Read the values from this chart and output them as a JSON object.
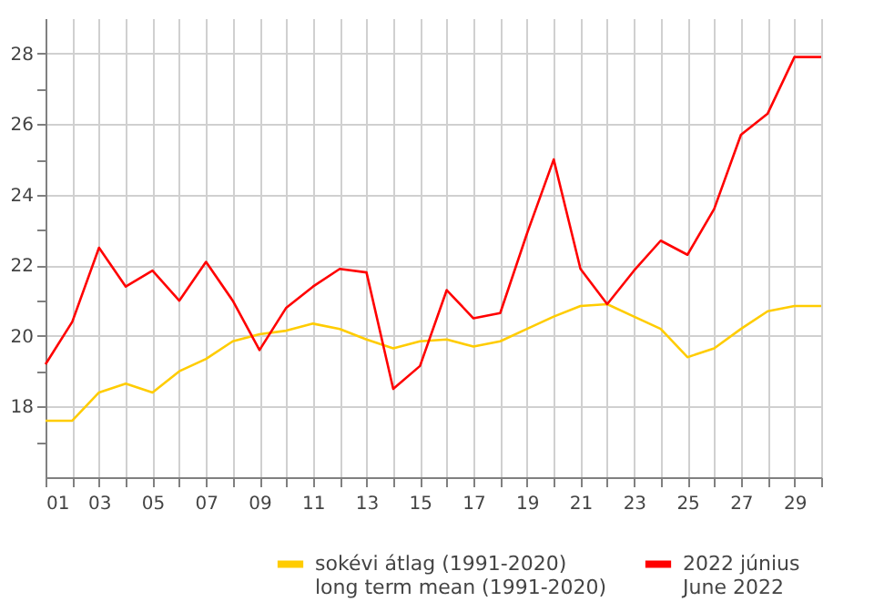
{
  "chart_data": {
    "type": "line",
    "x": [
      1,
      2,
      3,
      4,
      5,
      6,
      7,
      8,
      9,
      10,
      11,
      12,
      13,
      14,
      15,
      16,
      17,
      18,
      19,
      20,
      21,
      22,
      23,
      24,
      25,
      26,
      27,
      28,
      29,
      30
    ],
    "series": [
      {
        "name": "sokévi átlag (1991-2020)\nlong term mean (1991-2020)",
        "color": "#ffcc00",
        "values": [
          17.6,
          17.6,
          18.4,
          18.65,
          18.4,
          19.0,
          19.35,
          19.85,
          20.05,
          20.15,
          20.35,
          20.2,
          19.9,
          19.65,
          19.85,
          19.9,
          19.7,
          19.85,
          20.2,
          20.55,
          20.85,
          20.9,
          20.55,
          20.2,
          19.4,
          19.65,
          20.2,
          20.7,
          20.85,
          20.85
        ]
      },
      {
        "name": "2022 június\nJune 2022",
        "color": "#ff0000",
        "values": [
          19.2,
          20.4,
          22.5,
          21.4,
          21.85,
          21.0,
          22.1,
          21.0,
          19.6,
          20.8,
          21.4,
          21.9,
          21.8,
          18.5,
          19.15,
          21.3,
          20.5,
          20.65,
          22.9,
          25.0,
          21.9,
          20.9,
          21.85,
          22.7,
          22.3,
          23.6,
          25.7,
          26.3,
          27.9,
          27.9
        ]
      }
    ],
    "xlim": [
      1,
      30
    ],
    "xticks": [
      {
        "value": 1,
        "label": "01"
      },
      {
        "value": 2,
        "label": null
      },
      {
        "value": 3,
        "label": "03"
      },
      {
        "value": 4,
        "label": null
      },
      {
        "value": 5,
        "label": "05"
      },
      {
        "value": 6,
        "label": null
      },
      {
        "value": 7,
        "label": "07"
      },
      {
        "value": 8,
        "label": null
      },
      {
        "value": 9,
        "label": "09"
      },
      {
        "value": 10,
        "label": null
      },
      {
        "value": 11,
        "label": "11"
      },
      {
        "value": 12,
        "label": null
      },
      {
        "value": 13,
        "label": "13"
      },
      {
        "value": 14,
        "label": null
      },
      {
        "value": 15,
        "label": "15"
      },
      {
        "value": 16,
        "label": null
      },
      {
        "value": 17,
        "label": "17"
      },
      {
        "value": 18,
        "label": null
      },
      {
        "value": 19,
        "label": "19"
      },
      {
        "value": 20,
        "label": null
      },
      {
        "value": 21,
        "label": "21"
      },
      {
        "value": 22,
        "label": null
      },
      {
        "value": 23,
        "label": "23"
      },
      {
        "value": 24,
        "label": null
      },
      {
        "value": 25,
        "label": "25"
      },
      {
        "value": 26,
        "label": null
      },
      {
        "value": 27,
        "label": "27"
      },
      {
        "value": 28,
        "label": null
      },
      {
        "value": 29,
        "label": "29"
      },
      {
        "value": 30,
        "label": null
      }
    ],
    "ylim": [
      16,
      29
    ],
    "yticks": [
      {
        "value": 17,
        "label": null
      },
      18,
      {
        "value": 19,
        "label": null
      },
      20,
      {
        "value": 21,
        "label": null
      },
      22,
      {
        "value": 23,
        "label": null
      },
      24,
      {
        "value": 25,
        "label": null
      },
      26,
      {
        "value": 27,
        "label": null
      },
      28
    ],
    "grid": true,
    "legend": "bottom",
    "marker": "none",
    "line_style": "solid"
  }
}
